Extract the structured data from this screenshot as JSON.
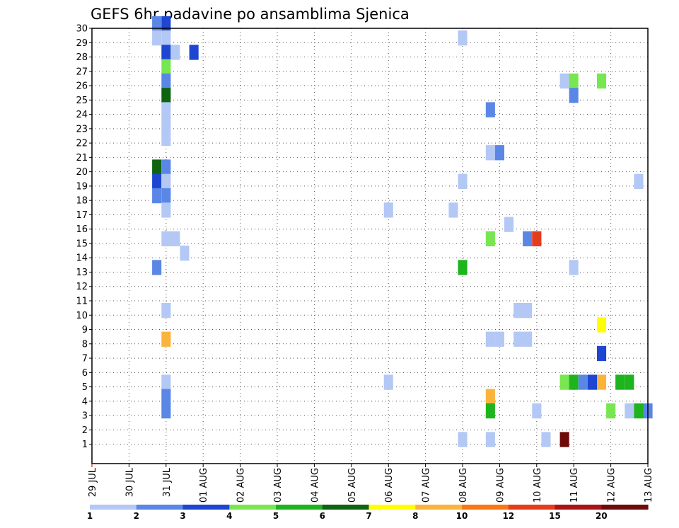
{
  "chart_data": {
    "type": "heatmap",
    "title": "GEFS 6hr padavine po ansamblima Sjenica",
    "xlabel": "",
    "ylabel": "",
    "x_tick_labels": [
      "29 JUL",
      "30 JUL",
      "31 JUL",
      "01 AUG",
      "02 AUG",
      "03 AUG",
      "04 AUG",
      "05 AUG",
      "06 AUG",
      "07 AUG",
      "08 AUG",
      "09 AUG",
      "10 AUG",
      "11 AUG",
      "12 AUG",
      "13 AUG"
    ],
    "xlim": [
      0,
      60
    ],
    "y_tick_labels": [
      "1",
      "2",
      "3",
      "4",
      "5",
      "6",
      "7",
      "8",
      "9",
      "10",
      "11",
      "12",
      "13",
      "14",
      "15",
      "16",
      "17",
      "18",
      "19",
      "20",
      "21",
      "22",
      "23",
      "24",
      "25",
      "26",
      "27",
      "28",
      "29",
      "30"
    ],
    "ylim": [
      0,
      30
    ],
    "grid": true,
    "colorbar": {
      "labels": [
        "1",
        "2",
        "3",
        "4",
        "5",
        "6",
        "7",
        "8",
        "10",
        "12",
        "15",
        "20"
      ],
      "colors": [
        "#b4c8f5",
        "#5a87e6",
        "#1e46d2",
        "#78e650",
        "#1eb41e",
        "#0f640f",
        "#ffff00",
        "#fab43c",
        "#fa7814",
        "#e63c1e",
        "#aa1414",
        "#6e0a0a"
      ]
    },
    "cells": [
      {
        "t": 7,
        "m": 30,
        "c": 1
      },
      {
        "t": 8,
        "m": 30,
        "c": 2
      },
      {
        "t": 7,
        "m": 29,
        "c": 0
      },
      {
        "t": 8,
        "m": 29,
        "c": 0
      },
      {
        "t": 40,
        "m": 29,
        "c": 0
      },
      {
        "t": 8,
        "m": 28,
        "c": 2
      },
      {
        "t": 9,
        "m": 28,
        "c": 0
      },
      {
        "t": 11,
        "m": 28,
        "c": 2
      },
      {
        "t": 8,
        "m": 27,
        "c": 3
      },
      {
        "t": 8,
        "m": 26,
        "c": 1
      },
      {
        "t": 51,
        "m": 26,
        "c": 0
      },
      {
        "t": 52,
        "m": 26,
        "c": 3
      },
      {
        "t": 55,
        "m": 26,
        "c": 3
      },
      {
        "t": 8,
        "m": 25,
        "c": 5
      },
      {
        "t": 52,
        "m": 25,
        "c": 1
      },
      {
        "t": 8,
        "m": 24,
        "c": 0
      },
      {
        "t": 43,
        "m": 24,
        "c": 1
      },
      {
        "t": 8,
        "m": 23,
        "c": 0
      },
      {
        "t": 8,
        "m": 22,
        "c": 0
      },
      {
        "t": 43,
        "m": 21,
        "c": 0
      },
      {
        "t": 44,
        "m": 21,
        "c": 1
      },
      {
        "t": 7,
        "m": 20,
        "c": 5
      },
      {
        "t": 8,
        "m": 20,
        "c": 1
      },
      {
        "t": 7,
        "m": 19,
        "c": 2
      },
      {
        "t": 8,
        "m": 19,
        "c": 0
      },
      {
        "t": 40,
        "m": 19,
        "c": 0
      },
      {
        "t": 59,
        "m": 19,
        "c": 0
      },
      {
        "t": 7,
        "m": 18,
        "c": 1
      },
      {
        "t": 8,
        "m": 18,
        "c": 1
      },
      {
        "t": 8,
        "m": 17,
        "c": 0
      },
      {
        "t": 32,
        "m": 17,
        "c": 0
      },
      {
        "t": 39,
        "m": 17,
        "c": 0
      },
      {
        "t": 45,
        "m": 16,
        "c": 0
      },
      {
        "t": 8,
        "m": 15,
        "c": 0
      },
      {
        "t": 9,
        "m": 15,
        "c": 0
      },
      {
        "t": 43,
        "m": 15,
        "c": 3
      },
      {
        "t": 47,
        "m": 15,
        "c": 1
      },
      {
        "t": 48,
        "m": 15,
        "c": 9
      },
      {
        "t": 10,
        "m": 14,
        "c": 0
      },
      {
        "t": 7,
        "m": 13,
        "c": 1
      },
      {
        "t": 40,
        "m": 13,
        "c": 4
      },
      {
        "t": 52,
        "m": 13,
        "c": 0
      },
      {
        "t": 8,
        "m": 10,
        "c": 0
      },
      {
        "t": 46,
        "m": 10,
        "c": 0
      },
      {
        "t": 47,
        "m": 10,
        "c": 0
      },
      {
        "t": 55,
        "m": 9,
        "c": 6
      },
      {
        "t": 8,
        "m": 8,
        "c": 7
      },
      {
        "t": 43,
        "m": 8,
        "c": 0
      },
      {
        "t": 44,
        "m": 8,
        "c": 0
      },
      {
        "t": 46,
        "m": 8,
        "c": 0
      },
      {
        "t": 47,
        "m": 8,
        "c": 0
      },
      {
        "t": 55,
        "m": 7,
        "c": 2
      },
      {
        "t": 8,
        "m": 5,
        "c": 0
      },
      {
        "t": 32,
        "m": 5,
        "c": 0
      },
      {
        "t": 51,
        "m": 5,
        "c": 3
      },
      {
        "t": 52,
        "m": 5,
        "c": 4
      },
      {
        "t": 53,
        "m": 5,
        "c": 1
      },
      {
        "t": 54,
        "m": 5,
        "c": 2
      },
      {
        "t": 55,
        "m": 5,
        "c": 7
      },
      {
        "t": 57,
        "m": 5,
        "c": 4
      },
      {
        "t": 58,
        "m": 5,
        "c": 4
      },
      {
        "t": 8,
        "m": 4,
        "c": 1
      },
      {
        "t": 43,
        "m": 4,
        "c": 7
      },
      {
        "t": 8,
        "m": 3,
        "c": 1
      },
      {
        "t": 43,
        "m": 3,
        "c": 4
      },
      {
        "t": 48,
        "m": 3,
        "c": 0
      },
      {
        "t": 56,
        "m": 3,
        "c": 3
      },
      {
        "t": 58,
        "m": 3,
        "c": 0
      },
      {
        "t": 59,
        "m": 3,
        "c": 4
      },
      {
        "t": 60,
        "m": 3,
        "c": 1
      },
      {
        "t": 40,
        "m": 1,
        "c": 0
      },
      {
        "t": 43,
        "m": 1,
        "c": 0
      },
      {
        "t": 49,
        "m": 1,
        "c": 0
      },
      {
        "t": 51,
        "m": 1,
        "c": 11
      }
    ]
  }
}
